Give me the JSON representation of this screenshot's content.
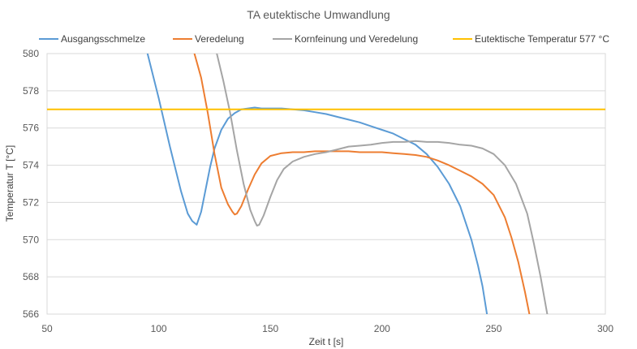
{
  "chart_data": {
    "type": "line",
    "title": "TA eutektische Umwandlung",
    "xlabel": "Zeit t [s]",
    "ylabel": "Temperatur T [°C]",
    "xlim": [
      50,
      300
    ],
    "ylim": [
      566,
      580
    ],
    "x_ticks": [
      50,
      100,
      150,
      200,
      250,
      300
    ],
    "y_ticks": [
      566,
      568,
      570,
      572,
      574,
      576,
      578,
      580
    ],
    "grid": true,
    "legend_position": "top",
    "series": [
      {
        "name": "Ausgangsschmelze",
        "color": "#5b9bd5",
        "x": [
          90,
          95,
          100,
          105,
          110,
          113,
          115,
          117,
          119,
          121,
          123,
          125,
          128,
          131,
          134,
          137,
          140,
          143,
          146,
          150,
          155,
          160,
          165,
          170,
          175,
          180,
          185,
          190,
          195,
          200,
          205,
          210,
          215,
          220,
          225,
          230,
          235,
          240,
          243,
          245,
          247
        ],
        "y": [
          583,
          580,
          577.6,
          575,
          572.6,
          571.4,
          571,
          570.8,
          571.5,
          572.7,
          573.9,
          574.9,
          575.9,
          576.5,
          576.8,
          577,
          577.05,
          577.1,
          577.05,
          577.05,
          577.05,
          577,
          576.95,
          576.85,
          576.75,
          576.6,
          576.45,
          576.3,
          576.1,
          575.9,
          575.7,
          575.4,
          575.1,
          574.6,
          573.9,
          573,
          571.8,
          570,
          568.6,
          567.5,
          566
        ]
      },
      {
        "name": "Veredelung",
        "color": "#ed7d31",
        "x": [
          113,
          116,
          119,
          122,
          125,
          128,
          131,
          133,
          134,
          135,
          137,
          140,
          143,
          146,
          150,
          155,
          160,
          165,
          170,
          175,
          180,
          185,
          190,
          195,
          200,
          205,
          210,
          215,
          220,
          225,
          230,
          235,
          240,
          245,
          250,
          255,
          258,
          261,
          264,
          266
        ],
        "y": [
          582,
          580,
          578.7,
          576.8,
          574.6,
          572.8,
          571.9,
          571.5,
          571.35,
          571.4,
          571.8,
          572.7,
          573.5,
          574.1,
          574.5,
          574.65,
          574.7,
          574.7,
          574.75,
          574.75,
          574.75,
          574.75,
          574.7,
          574.7,
          574.7,
          574.65,
          574.6,
          574.55,
          574.45,
          574.25,
          574,
          573.7,
          573.4,
          573,
          572.4,
          571.2,
          570.1,
          568.8,
          567.2,
          566
        ]
      },
      {
        "name": "Kornfeinung und Veredelung",
        "color": "#a5a5a5",
        "x": [
          123,
          126,
          129,
          132,
          135,
          138,
          141,
          143,
          144,
          145,
          147,
          150,
          153,
          156,
          160,
          165,
          170,
          175,
          180,
          185,
          190,
          195,
          200,
          205,
          210,
          215,
          220,
          225,
          230,
          235,
          240,
          245,
          250,
          255,
          260,
          265,
          268,
          271,
          274
        ],
        "y": [
          582,
          580,
          578.5,
          576.8,
          574.8,
          573,
          571.6,
          571,
          570.75,
          570.8,
          571.3,
          572.3,
          573.2,
          573.8,
          574.2,
          574.45,
          574.6,
          574.7,
          574.85,
          575,
          575.05,
          575.1,
          575.2,
          575.25,
          575.25,
          575.3,
          575.25,
          575.25,
          575.2,
          575.1,
          575.05,
          574.9,
          574.6,
          574,
          573,
          571.4,
          569.8,
          568,
          566
        ]
      },
      {
        "name": "Eutektische Temperatur 577 °C",
        "color": "#ffc000",
        "x": [
          50,
          300
        ],
        "y": [
          577,
          577
        ]
      }
    ]
  }
}
